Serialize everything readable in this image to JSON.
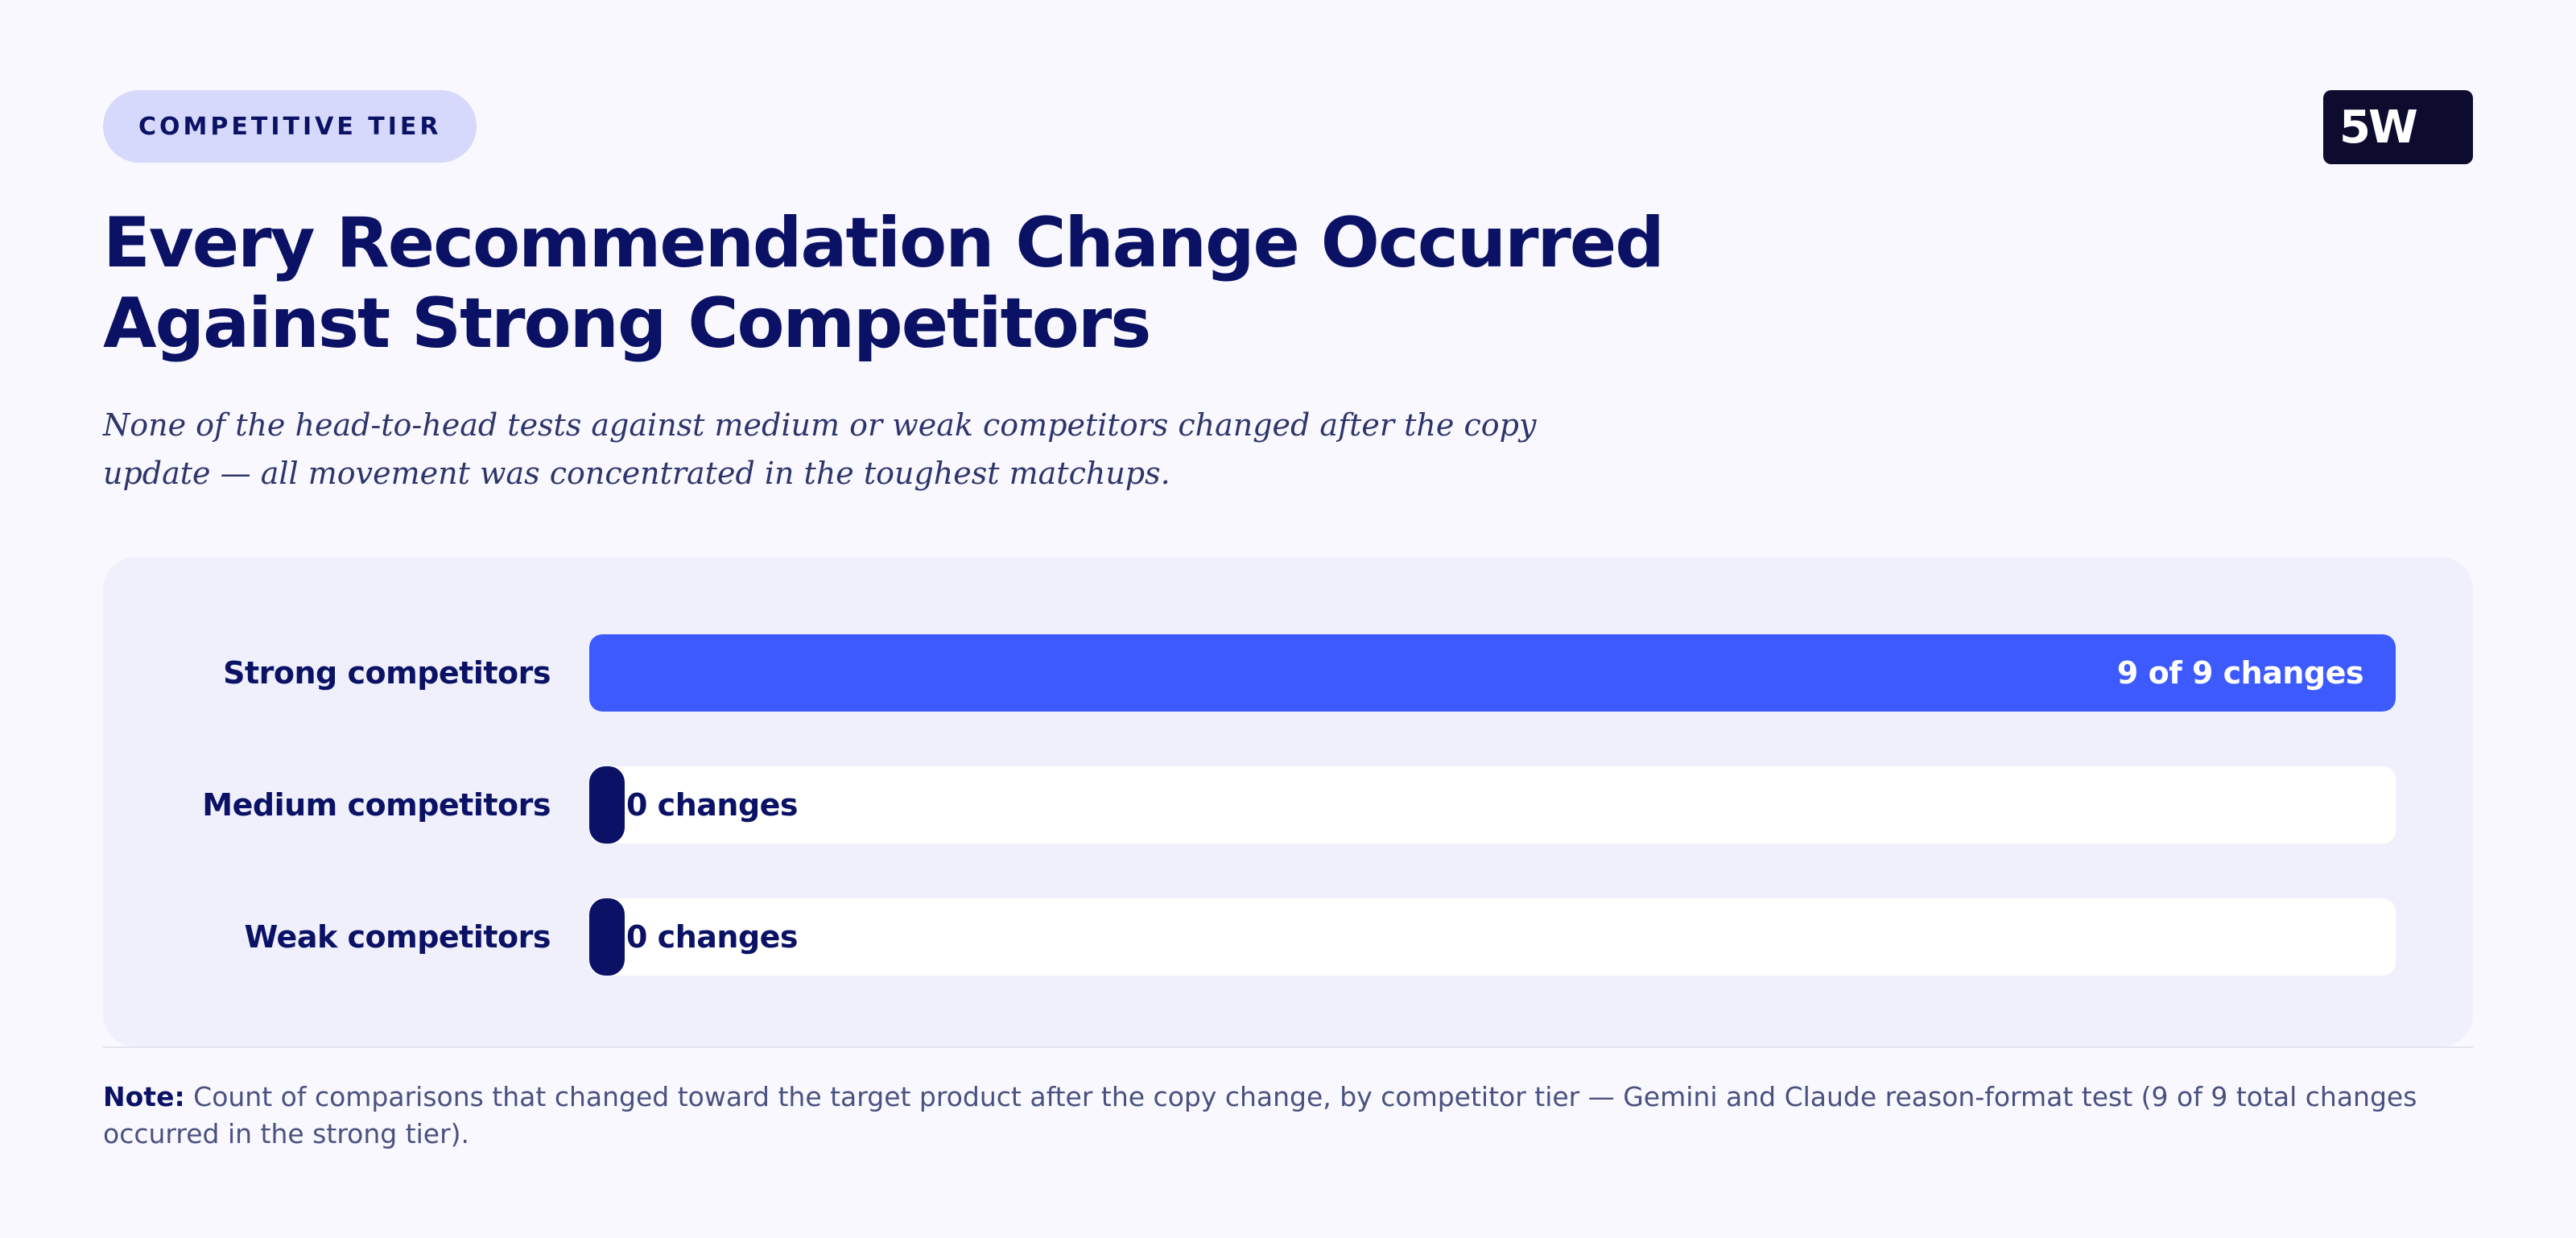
{
  "header": {
    "tag": "COMPETITIVE TIER",
    "logo": "5W",
    "title": "Every Recommendation Change Occurred Against Strong Competitors",
    "subtitle": "None of the head-to-head tests against medium or weak competitors changed after the copy update — all movement was concentrated in the toughest matchups."
  },
  "chart_data": {
    "type": "bar",
    "orientation": "horizontal",
    "categories": [
      "Strong competitors",
      "Medium competitors",
      "Weak competitors"
    ],
    "values": [
      9,
      0,
      0
    ],
    "value_labels": [
      "9 of 9 changes",
      "0 changes",
      "0 changes"
    ],
    "xlim": [
      0,
      9
    ],
    "grid": false
  },
  "footer": {
    "note_label": "Note:",
    "note_text": "Count of comparisons that changed toward the target product after the copy change, by competitor tier — Gemini and Claude reason-format test (9 of 9 total changes occurred in the strong tier)."
  },
  "colors": {
    "accent": "#3d5afe",
    "navy": "#0b1266",
    "panel": "#eff0fb",
    "track": "#ffffff"
  }
}
